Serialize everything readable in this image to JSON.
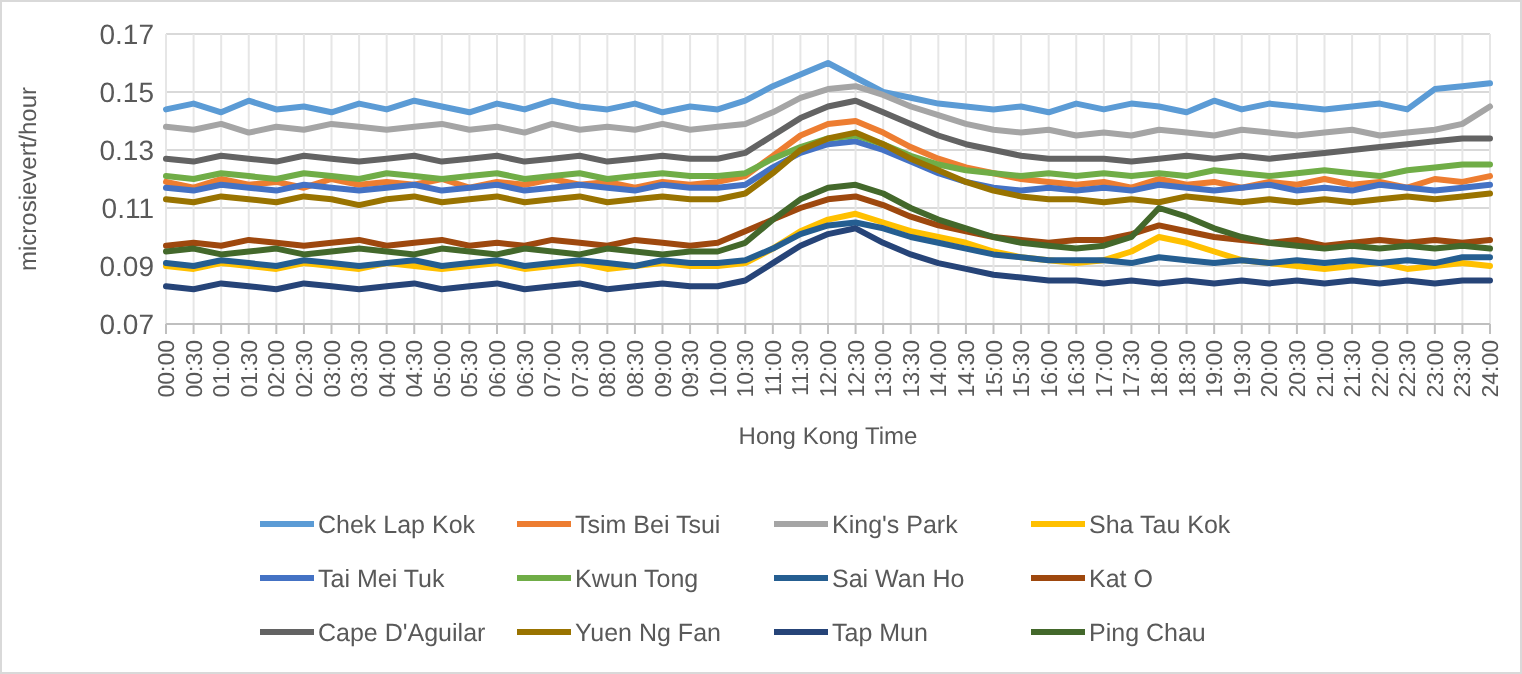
{
  "chart_data": {
    "type": "line",
    "xlabel": "Hong Kong Time",
    "ylabel": "microsievert/hour",
    "categories": [
      "00:00",
      "00:30",
      "01:00",
      "01:30",
      "02:00",
      "02:30",
      "03:00",
      "03:30",
      "04:00",
      "04:30",
      "05:00",
      "05:30",
      "06:00",
      "06:30",
      "07:00",
      "07:30",
      "08:00",
      "08:30",
      "09:00",
      "09:30",
      "10:00",
      "10:30",
      "11:00",
      "11:30",
      "12:00",
      "12:30",
      "13:00",
      "13:30",
      "14:00",
      "14:30",
      "15:00",
      "15:30",
      "16:00",
      "16:30",
      "17:00",
      "17:30",
      "18:00",
      "18:30",
      "19:00",
      "19:30",
      "20:00",
      "20:30",
      "21:00",
      "21:30",
      "22:00",
      "22:30",
      "23:00",
      "23:30",
      "24:00"
    ],
    "ylim": [
      0.07,
      0.17
    ],
    "yticks": [
      0.07,
      0.09,
      0.11,
      0.13,
      0.15,
      0.17
    ],
    "grid": true,
    "legend": "bottom",
    "marker": "none",
    "line_style": "solid",
    "series": [
      {
        "name": "Chek Lap Kok",
        "color": "#5b9bd5",
        "values": [
          0.144,
          0.146,
          0.143,
          0.147,
          0.144,
          0.145,
          0.143,
          0.146,
          0.144,
          0.147,
          0.145,
          0.143,
          0.146,
          0.144,
          0.147,
          0.145,
          0.144,
          0.146,
          0.143,
          0.145,
          0.144,
          0.147,
          0.152,
          0.156,
          0.16,
          0.155,
          0.15,
          0.148,
          0.146,
          0.145,
          0.144,
          0.145,
          0.143,
          0.146,
          0.144,
          0.146,
          0.145,
          0.143,
          0.147,
          0.144,
          0.146,
          0.145,
          0.144,
          0.145,
          0.146,
          0.144,
          0.151,
          0.152,
          0.153
        ]
      },
      {
        "name": "Tsim Bei Tsui",
        "color": "#ed7d31",
        "values": [
          0.119,
          0.117,
          0.12,
          0.118,
          0.119,
          0.117,
          0.12,
          0.118,
          0.119,
          0.118,
          0.12,
          0.117,
          0.119,
          0.118,
          0.12,
          0.118,
          0.119,
          0.117,
          0.119,
          0.118,
          0.119,
          0.121,
          0.128,
          0.135,
          0.139,
          0.14,
          0.136,
          0.131,
          0.127,
          0.124,
          0.122,
          0.12,
          0.119,
          0.118,
          0.119,
          0.117,
          0.12,
          0.118,
          0.119,
          0.117,
          0.119,
          0.118,
          0.12,
          0.118,
          0.119,
          0.117,
          0.12,
          0.119,
          0.121
        ]
      },
      {
        "name": "King's Park",
        "color": "#a5a5a5",
        "values": [
          0.138,
          0.137,
          0.139,
          0.136,
          0.138,
          0.137,
          0.139,
          0.138,
          0.137,
          0.138,
          0.139,
          0.137,
          0.138,
          0.136,
          0.139,
          0.137,
          0.138,
          0.137,
          0.139,
          0.137,
          0.138,
          0.139,
          0.143,
          0.148,
          0.151,
          0.152,
          0.149,
          0.145,
          0.142,
          0.139,
          0.137,
          0.136,
          0.137,
          0.135,
          0.136,
          0.135,
          0.137,
          0.136,
          0.135,
          0.137,
          0.136,
          0.135,
          0.136,
          0.137,
          0.135,
          0.136,
          0.137,
          0.139,
          0.145
        ]
      },
      {
        "name": "Sha Tau Kok",
        "color": "#ffc000",
        "values": [
          0.09,
          0.089,
          0.091,
          0.09,
          0.089,
          0.091,
          0.09,
          0.089,
          0.091,
          0.09,
          0.089,
          0.09,
          0.091,
          0.089,
          0.09,
          0.091,
          0.089,
          0.09,
          0.091,
          0.09,
          0.09,
          0.091,
          0.096,
          0.102,
          0.106,
          0.108,
          0.105,
          0.102,
          0.1,
          0.098,
          0.095,
          0.093,
          0.092,
          0.091,
          0.092,
          0.095,
          0.1,
          0.098,
          0.095,
          0.092,
          0.091,
          0.09,
          0.089,
          0.09,
          0.091,
          0.089,
          0.09,
          0.091,
          0.09
        ]
      },
      {
        "name": "Tai Mei Tuk",
        "color": "#4472c4",
        "values": [
          0.117,
          0.116,
          0.118,
          0.117,
          0.116,
          0.118,
          0.117,
          0.116,
          0.117,
          0.118,
          0.116,
          0.117,
          0.118,
          0.116,
          0.117,
          0.118,
          0.117,
          0.116,
          0.118,
          0.117,
          0.117,
          0.118,
          0.124,
          0.129,
          0.132,
          0.133,
          0.13,
          0.126,
          0.122,
          0.119,
          0.117,
          0.116,
          0.117,
          0.116,
          0.117,
          0.116,
          0.118,
          0.117,
          0.116,
          0.117,
          0.118,
          0.116,
          0.117,
          0.116,
          0.118,
          0.117,
          0.116,
          0.117,
          0.118
        ]
      },
      {
        "name": "Kwun Tong",
        "color": "#70ad47",
        "values": [
          0.121,
          0.12,
          0.122,
          0.121,
          0.12,
          0.122,
          0.121,
          0.12,
          0.122,
          0.121,
          0.12,
          0.121,
          0.122,
          0.12,
          0.121,
          0.122,
          0.12,
          0.121,
          0.122,
          0.121,
          0.121,
          0.122,
          0.127,
          0.131,
          0.134,
          0.135,
          0.132,
          0.128,
          0.125,
          0.123,
          0.122,
          0.121,
          0.122,
          0.121,
          0.122,
          0.121,
          0.122,
          0.121,
          0.123,
          0.122,
          0.121,
          0.122,
          0.123,
          0.122,
          0.121,
          0.123,
          0.124,
          0.125,
          0.125
        ]
      },
      {
        "name": "Sai Wan Ho",
        "color": "#255e91",
        "values": [
          0.091,
          0.09,
          0.092,
          0.091,
          0.09,
          0.092,
          0.091,
          0.09,
          0.091,
          0.092,
          0.09,
          0.091,
          0.092,
          0.09,
          0.091,
          0.092,
          0.091,
          0.09,
          0.092,
          0.091,
          0.091,
          0.092,
          0.096,
          0.101,
          0.104,
          0.105,
          0.103,
          0.1,
          0.098,
          0.096,
          0.094,
          0.093,
          0.092,
          0.092,
          0.092,
          0.091,
          0.093,
          0.092,
          0.091,
          0.092,
          0.091,
          0.092,
          0.091,
          0.092,
          0.091,
          0.092,
          0.091,
          0.093,
          0.093
        ]
      },
      {
        "name": "Kat O",
        "color": "#9e480e",
        "values": [
          0.097,
          0.098,
          0.097,
          0.099,
          0.098,
          0.097,
          0.098,
          0.099,
          0.097,
          0.098,
          0.099,
          0.097,
          0.098,
          0.097,
          0.099,
          0.098,
          0.097,
          0.099,
          0.098,
          0.097,
          0.098,
          0.102,
          0.106,
          0.11,
          0.113,
          0.114,
          0.111,
          0.107,
          0.104,
          0.102,
          0.1,
          0.099,
          0.098,
          0.099,
          0.099,
          0.101,
          0.104,
          0.102,
          0.1,
          0.099,
          0.098,
          0.099,
          0.097,
          0.098,
          0.099,
          0.098,
          0.099,
          0.098,
          0.099
        ]
      },
      {
        "name": "Cape D'Aguilar",
        "color": "#636363",
        "values": [
          0.127,
          0.126,
          0.128,
          0.127,
          0.126,
          0.128,
          0.127,
          0.126,
          0.127,
          0.128,
          0.126,
          0.127,
          0.128,
          0.126,
          0.127,
          0.128,
          0.126,
          0.127,
          0.128,
          0.127,
          0.127,
          0.129,
          0.135,
          0.141,
          0.145,
          0.147,
          0.143,
          0.139,
          0.135,
          0.132,
          0.13,
          0.128,
          0.127,
          0.127,
          0.127,
          0.126,
          0.127,
          0.128,
          0.127,
          0.128,
          0.127,
          0.128,
          0.129,
          0.13,
          0.131,
          0.132,
          0.133,
          0.134,
          0.134
        ]
      },
      {
        "name": "Yuen Ng Fan",
        "color": "#997300",
        "values": [
          0.113,
          0.112,
          0.114,
          0.113,
          0.112,
          0.114,
          0.113,
          0.111,
          0.113,
          0.114,
          0.112,
          0.113,
          0.114,
          0.112,
          0.113,
          0.114,
          0.112,
          0.113,
          0.114,
          0.113,
          0.113,
          0.115,
          0.122,
          0.13,
          0.134,
          0.136,
          0.132,
          0.127,
          0.123,
          0.119,
          0.116,
          0.114,
          0.113,
          0.113,
          0.112,
          0.113,
          0.112,
          0.114,
          0.113,
          0.112,
          0.113,
          0.112,
          0.113,
          0.112,
          0.113,
          0.114,
          0.113,
          0.114,
          0.115
        ]
      },
      {
        "name": "Tap Mun",
        "color": "#264478",
        "values": [
          0.083,
          0.082,
          0.084,
          0.083,
          0.082,
          0.084,
          0.083,
          0.082,
          0.083,
          0.084,
          0.082,
          0.083,
          0.084,
          0.082,
          0.083,
          0.084,
          0.082,
          0.083,
          0.084,
          0.083,
          0.083,
          0.085,
          0.091,
          0.097,
          0.101,
          0.103,
          0.098,
          0.094,
          0.091,
          0.089,
          0.087,
          0.086,
          0.085,
          0.085,
          0.084,
          0.085,
          0.084,
          0.085,
          0.084,
          0.085,
          0.084,
          0.085,
          0.084,
          0.085,
          0.084,
          0.085,
          0.084,
          0.085,
          0.085
        ]
      },
      {
        "name": "Ping Chau",
        "color": "#43682b",
        "values": [
          0.095,
          0.096,
          0.094,
          0.095,
          0.096,
          0.094,
          0.095,
          0.096,
          0.095,
          0.094,
          0.096,
          0.095,
          0.094,
          0.096,
          0.095,
          0.094,
          0.096,
          0.095,
          0.094,
          0.095,
          0.095,
          0.098,
          0.106,
          0.113,
          0.117,
          0.118,
          0.115,
          0.11,
          0.106,
          0.103,
          0.1,
          0.098,
          0.097,
          0.096,
          0.097,
          0.1,
          0.11,
          0.107,
          0.103,
          0.1,
          0.098,
          0.097,
          0.096,
          0.097,
          0.096,
          0.097,
          0.096,
          0.097,
          0.096
        ]
      }
    ]
  }
}
